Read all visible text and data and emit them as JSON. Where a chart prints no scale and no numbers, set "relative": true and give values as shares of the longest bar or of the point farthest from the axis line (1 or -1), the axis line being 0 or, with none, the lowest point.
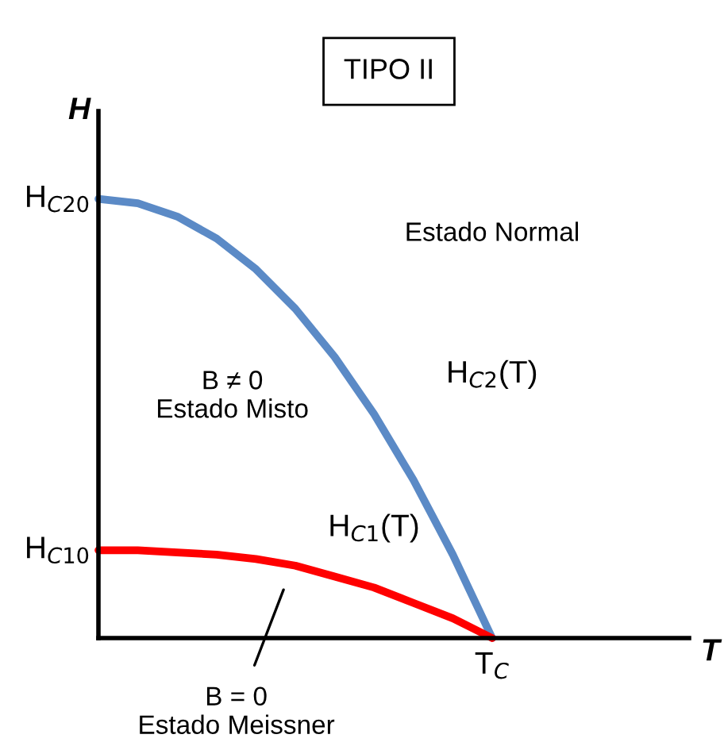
{
  "chart_data": {
    "type": "line",
    "title": "TIPO II",
    "ylabel": "H",
    "relative": true,
    "categories": [
      null,
      null,
      null,
      null,
      null,
      null,
      null,
      null,
      null,
      null,
      null,
      null,
      null,
      null,
      null,
      null
    ],
    "series": [
      {
        "color": "#5b8ac6",
        "values": [
          1,
          0.99,
          0.96,
          0.91,
          0.84,
          0.75,
          0.64,
          0.51,
          0.36,
          0.19,
          0,
          null,
          null,
          null,
          null,
          null
        ]
      },
      {
        "color": "#ff0000",
        "values": [
          0.2,
          0.2,
          0.195,
          0.19,
          0.18,
          0.165,
          0.14,
          0.115,
          0.08,
          0.045,
          0,
          null,
          null,
          null,
          null,
          null
        ]
      }
    ],
    "annotations": [
      "H$_{C20}$",
      "H$_{C10}$",
      "T$_{C}$",
      "Estado Normal",
      "B ≠ 0\nEstado Misto",
      "H$_{C2}$(T)",
      "H$_{C1}$(T)",
      "B = 0\nEstado Meissner",
      "T"
    ],
    "marker": "none",
    "line_style": "solid"
  }
}
